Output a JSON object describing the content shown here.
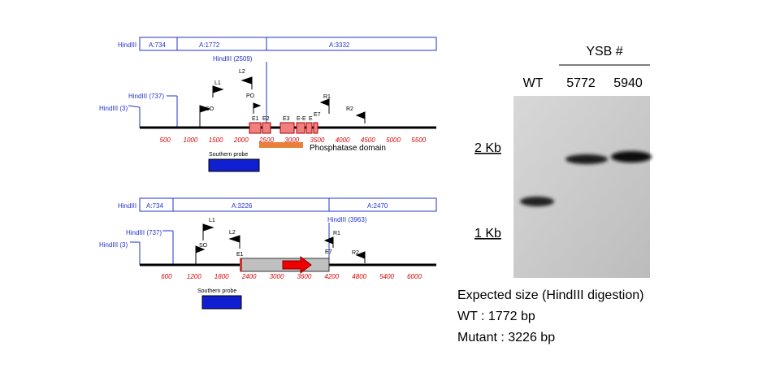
{
  "map1": {
    "segment_title": "HindIII",
    "segments": [
      "A:734",
      "A:1772",
      "A:3332"
    ],
    "sites": [
      "HindIII (3)",
      "HindIII (737)",
      "HindIII (2509)"
    ],
    "primers": [
      "L1",
      "L2",
      "SO",
      "PO",
      "R1",
      "R2"
    ],
    "exons": [
      "E1",
      "E2",
      "E3",
      "E-E",
      "E",
      "E7"
    ],
    "domain_label": "Phosphatase domain",
    "probe_label": "Southern probe",
    "ruler": [
      500,
      1000,
      1500,
      2000,
      2500,
      3000,
      3500,
      4000,
      4500,
      5000,
      5500
    ]
  },
  "map2": {
    "segment_title": "HindIII",
    "segments": [
      "A:734",
      "A:3226",
      "A:2470"
    ],
    "sites": [
      "HindIII (3)",
      "HindIII (737)",
      "HindIII (3963)"
    ],
    "primers": [
      "L1",
      "L2",
      "SO",
      "R1",
      "R2"
    ],
    "exons": [
      "E1",
      "E7"
    ],
    "probe_label": "Southern probe",
    "ruler": [
      600,
      1200,
      1800,
      2400,
      3000,
      3600,
      4200,
      4800,
      5400,
      6000
    ]
  },
  "blot": {
    "group_label": "YSB #",
    "lanes": [
      "WT",
      "5772",
      "5940"
    ],
    "markers": [
      "2 Kb",
      "1 Kb"
    ]
  },
  "notes": [
    "Expected size (HindIII digestion)",
    "WT : 1772 bp",
    "Mutant : 3226 bp"
  ]
}
